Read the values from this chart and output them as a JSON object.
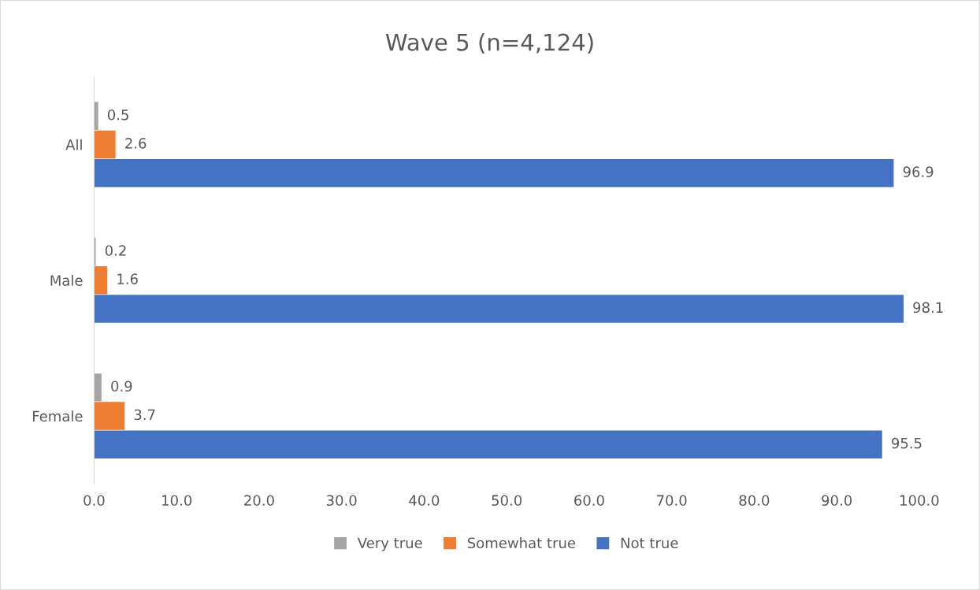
{
  "chart_data": {
    "type": "bar",
    "orientation": "horizontal",
    "title": "Wave 5 (n=4,124)",
    "categories": [
      "All",
      "Male",
      "Female"
    ],
    "series": [
      {
        "name": "Very true",
        "color": "#a5a5a5",
        "values": [
          0.5,
          0.2,
          0.9
        ]
      },
      {
        "name": "Somewhat true",
        "color": "#ed7d31",
        "values": [
          2.6,
          1.6,
          3.7
        ]
      },
      {
        "name": "Not true",
        "color": "#4472c4",
        "values": [
          96.9,
          98.1,
          95.5
        ]
      }
    ],
    "xlim": [
      0,
      100
    ],
    "xticks": [
      {
        "value": 0,
        "label": "0.0"
      },
      {
        "value": 10,
        "label": "10.0"
      },
      {
        "value": 20,
        "label": "20.0"
      },
      {
        "value": 30,
        "label": "30.0"
      },
      {
        "value": 40,
        "label": "40.0"
      },
      {
        "value": 50,
        "label": "50.0"
      },
      {
        "value": 60,
        "label": "60.0"
      },
      {
        "value": 70,
        "label": "70.0"
      },
      {
        "value": 80,
        "label": "80.0"
      },
      {
        "value": 90,
        "label": "90.0"
      },
      {
        "value": 100,
        "label": "100.0"
      }
    ],
    "data_labels": true,
    "grid": false,
    "legend": "bottom"
  }
}
